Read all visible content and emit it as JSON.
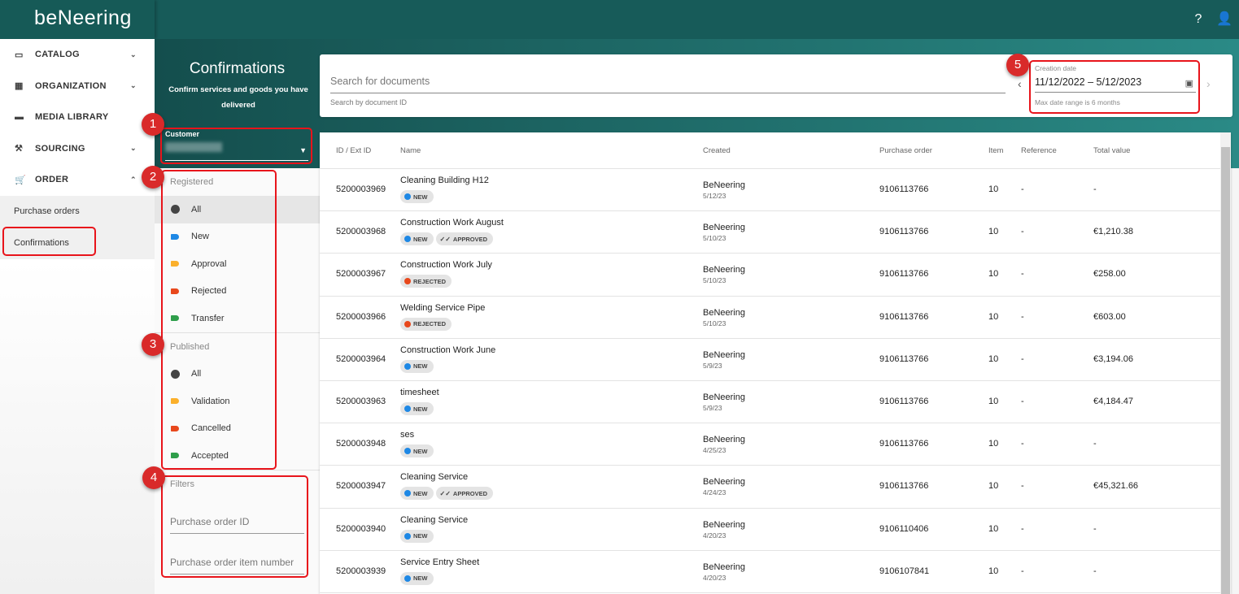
{
  "app": {
    "logo": "beNeering",
    "help_icon": "help-circle-icon",
    "account_icon": "account-icon"
  },
  "sidebar": {
    "items": [
      {
        "label": "CATALOG",
        "icon": "folder-icon",
        "chev": "⌄"
      },
      {
        "label": "ORGANIZATION",
        "icon": "building-icon",
        "chev": "⌄"
      },
      {
        "label": "MEDIA LIBRARY",
        "icon": "photo-library-icon",
        "chev": ""
      },
      {
        "label": "SOURCING",
        "icon": "gavel-icon",
        "chev": "⌄"
      },
      {
        "label": "ORDER",
        "icon": "cart-icon",
        "chev": "⌃"
      }
    ],
    "subitems": [
      "Purchase orders",
      "Confirmations"
    ]
  },
  "page": {
    "title": "Confirmations",
    "subtitle": "Confirm services and goods you have delivered"
  },
  "customer": {
    "label": "Customer"
  },
  "filters": {
    "registered_label": "Registered",
    "registered": [
      {
        "label": "All",
        "color": ""
      },
      {
        "label": "New",
        "color": "#1e88e5"
      },
      {
        "label": "Approval",
        "color": "#fbb02b"
      },
      {
        "label": "Rejected",
        "color": "#e8481c"
      },
      {
        "label": "Transfer",
        "color": "#2e9e4a"
      }
    ],
    "published_label": "Published",
    "published": [
      {
        "label": "All",
        "color": ""
      },
      {
        "label": "Validation",
        "color": "#fbb02b"
      },
      {
        "label": "Cancelled",
        "color": "#e8481c"
      },
      {
        "label": "Accepted",
        "color": "#2e9e4a"
      }
    ],
    "filters_label": "Filters",
    "po_id_placeholder": "Purchase order ID",
    "po_item_placeholder": "Purchase order item number"
  },
  "search": {
    "placeholder": "Search for documents",
    "hint": "Search by document ID"
  },
  "date": {
    "label": "Creation date",
    "value": "11/12/2022 – 5/12/2023",
    "hint": "Max date range is 6 months"
  },
  "table": {
    "columns": [
      "ID / Ext ID",
      "Name",
      "Created",
      "Purchase order",
      "Item",
      "Reference",
      "Total value"
    ],
    "rows": [
      {
        "id": "5200003969",
        "name": "Cleaning Building H12",
        "chips": [
          "NEW"
        ],
        "by": "BeNeering",
        "date": "5/12/23",
        "po": "9106113766",
        "item": "10",
        "ref": "-",
        "total": "-"
      },
      {
        "id": "5200003968",
        "name": "Construction Work August",
        "chips": [
          "NEW",
          "APPROVED"
        ],
        "by": "BeNeering",
        "date": "5/10/23",
        "po": "9106113766",
        "item": "10",
        "ref": "-",
        "total": "€1,210.38"
      },
      {
        "id": "5200003967",
        "name": "Construction Work July",
        "chips": [
          "REJECTED"
        ],
        "by": "BeNeering",
        "date": "5/10/23",
        "po": "9106113766",
        "item": "10",
        "ref": "-",
        "total": "€258.00"
      },
      {
        "id": "5200003966",
        "name": "Welding Service Pipe",
        "chips": [
          "REJECTED"
        ],
        "by": "BeNeering",
        "date": "5/10/23",
        "po": "9106113766",
        "item": "10",
        "ref": "-",
        "total": "€603.00"
      },
      {
        "id": "5200003964",
        "name": "Construction Work June",
        "chips": [
          "NEW"
        ],
        "by": "BeNeering",
        "date": "5/9/23",
        "po": "9106113766",
        "item": "10",
        "ref": "-",
        "total": "€3,194.06"
      },
      {
        "id": "5200003963",
        "name": "timesheet",
        "chips": [
          "NEW"
        ],
        "by": "BeNeering",
        "date": "5/9/23",
        "po": "9106113766",
        "item": "10",
        "ref": "-",
        "total": "€4,184.47"
      },
      {
        "id": "5200003948",
        "name": "ses",
        "chips": [
          "NEW"
        ],
        "by": "BeNeering",
        "date": "4/25/23",
        "po": "9106113766",
        "item": "10",
        "ref": "-",
        "total": "-"
      },
      {
        "id": "5200003947",
        "name": "Cleaning Service",
        "chips": [
          "NEW",
          "APPROVED"
        ],
        "by": "BeNeering",
        "date": "4/24/23",
        "po": "9106113766",
        "item": "10",
        "ref": "-",
        "total": "€45,321.66"
      },
      {
        "id": "5200003940",
        "name": "Cleaning Service",
        "chips": [
          "NEW"
        ],
        "by": "BeNeering",
        "date": "4/20/23",
        "po": "9106110406",
        "item": "10",
        "ref": "-",
        "total": "-"
      },
      {
        "id": "5200003939",
        "name": "Service Entry Sheet",
        "chips": [
          "NEW"
        ],
        "by": "BeNeering",
        "date": "4/20/23",
        "po": "9106107841",
        "item": "10",
        "ref": "-",
        "total": "-"
      }
    ]
  },
  "chip_colors": {
    "NEW": "#1e88e5",
    "REJECTED": "#e8481c"
  },
  "annotations": [
    "1",
    "2",
    "3",
    "4",
    "5"
  ]
}
